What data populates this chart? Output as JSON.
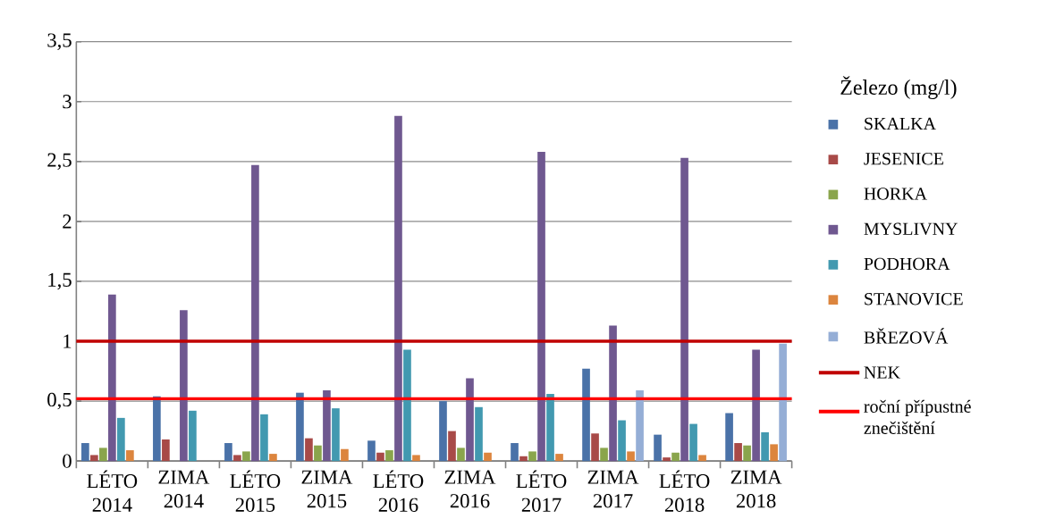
{
  "chart_data": {
    "type": "bar",
    "legend_title": "Železo (mg/l)",
    "categories": [
      "LÉTO 2014",
      "ZIMA 2014",
      "LÉTO 2015",
      "ZIMA 2015",
      "LÉTO 2016",
      "ZIMA 2016",
      "LÉTO 2017",
      "ZIMA 2017",
      "LÉTO 2018",
      "ZIMA 2018"
    ],
    "series": [
      {
        "name": "SKALKA",
        "color": "#4a72a8",
        "values": [
          0.15,
          0.54,
          0.15,
          0.57,
          0.17,
          0.5,
          0.15,
          0.77,
          0.22,
          0.4
        ]
      },
      {
        "name": "JESENICE",
        "color": "#a84a48",
        "values": [
          0.05,
          0.18,
          0.05,
          0.19,
          0.07,
          0.25,
          0.04,
          0.23,
          0.03,
          0.15
        ]
      },
      {
        "name": "HORKA",
        "color": "#8aa54c",
        "values": [
          0.11,
          null,
          0.08,
          0.13,
          0.09,
          0.11,
          0.08,
          0.11,
          0.07,
          0.13
        ]
      },
      {
        "name": "MYSLIVNY",
        "color": "#6f5890",
        "values": [
          1.39,
          1.26,
          2.47,
          0.59,
          2.88,
          0.69,
          2.58,
          1.13,
          2.53,
          0.93
        ]
      },
      {
        "name": "PODHORA",
        "color": "#4299b0",
        "values": [
          0.36,
          0.42,
          0.39,
          0.44,
          0.93,
          0.45,
          0.56,
          0.34,
          0.31,
          0.24
        ]
      },
      {
        "name": "STANOVICE",
        "color": "#dc853e",
        "values": [
          0.09,
          null,
          0.06,
          0.1,
          0.05,
          0.07,
          0.06,
          0.08,
          0.05,
          0.14
        ]
      },
      {
        "name": "BŘEZOVÁ",
        "color": "#95aed6",
        "values": [
          null,
          null,
          null,
          null,
          null,
          null,
          null,
          0.59,
          null,
          0.98
        ]
      }
    ],
    "ref_lines": [
      {
        "axis": "y",
        "value": 1,
        "label": "NEK",
        "color": "#c00000"
      },
      {
        "axis": "y",
        "value": 0.52,
        "label": "roční přípustné znečištění",
        "color": "#ff0000"
      }
    ],
    "ylim": [
      0,
      3.5
    ],
    "yticks": [
      0,
      {
        "value": 0.5,
        "label": "0,5"
      },
      1,
      {
        "value": 1.5,
        "label": "1,5"
      },
      2,
      {
        "value": 2.5,
        "label": "2,5"
      },
      3,
      {
        "value": 3.5,
        "label": "3,5"
      }
    ],
    "grid": "y",
    "legend": "right"
  }
}
